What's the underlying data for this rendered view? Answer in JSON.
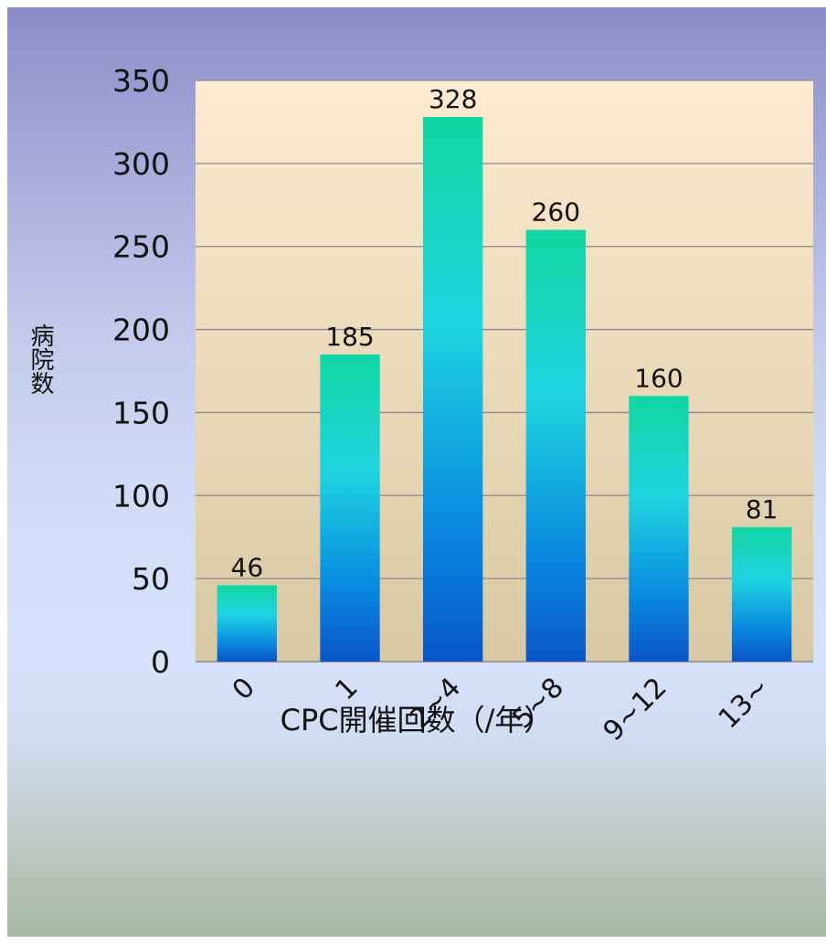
{
  "chart_data": {
    "type": "bar",
    "categories": [
      "0",
      "1",
      "2~4",
      "5~8",
      "9~12",
      "13~"
    ],
    "values": [
      46,
      185,
      328,
      260,
      160,
      81
    ],
    "data_labels": [
      "46",
      "185",
      "328",
      "260",
      "160",
      "81"
    ],
    "xlabel": "CPC開催回数（/年）",
    "ylabel": "病院数",
    "ylim": [
      0,
      350
    ],
    "yticks": [
      0,
      50,
      100,
      150,
      200,
      250,
      300,
      350
    ],
    "grid": true,
    "legend": "none"
  },
  "colors": {
    "bar_top": "#12d6a2",
    "bar_mid": "#1fd4e0",
    "bar_bottom": "#0a55c8",
    "plot_bg_top": "#fcebd0",
    "plot_bg_bottom": "#d8c9a4",
    "gridline": "#888888"
  }
}
